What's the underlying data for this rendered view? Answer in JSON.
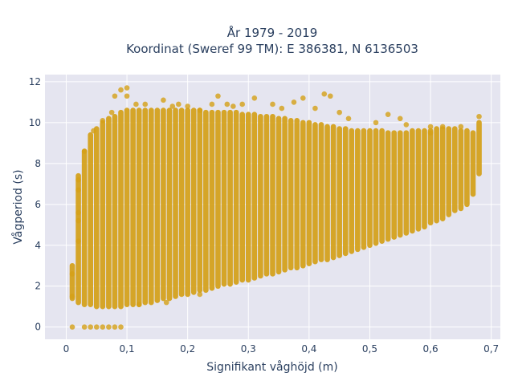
{
  "chart_data": {
    "type": "scatter",
    "title_lines": [
      "År 1979 - 2019",
      "Koordinat (Sweref 99 TM): E 386381, N 6136503"
    ],
    "xlabel": "Signifikant våghöjd (m)",
    "ylabel": "Vågperiod (s)",
    "xlim": [
      -0.035,
      0.715
    ],
    "ylim": [
      -0.6,
      12.35
    ],
    "x_ticks": [
      0,
      0.1,
      0.2,
      0.3,
      0.4,
      0.5,
      0.6,
      0.7
    ],
    "x_tick_labels": [
      "0",
      "0,1",
      "0,2",
      "0,3",
      "0,4",
      "0,5",
      "0,6",
      "0,7"
    ],
    "y_ticks": [
      0,
      2,
      4,
      6,
      8,
      10,
      12
    ],
    "y_tick_labels": [
      "0",
      "2",
      "4",
      "6",
      "8",
      "10",
      "12"
    ],
    "grid": true,
    "legend": "none",
    "marker_color": "#d4a017",
    "plot_background": "#e5e5f0",
    "bands": [
      [
        0.01,
        1.4,
        3.0
      ],
      [
        0.02,
        1.2,
        7.4
      ],
      [
        0.03,
        1.1,
        8.6
      ],
      [
        0.04,
        1.1,
        9.4
      ],
      [
        0.05,
        1.0,
        9.7
      ],
      [
        0.06,
        1.0,
        10.0
      ],
      [
        0.07,
        1.0,
        10.2
      ],
      [
        0.08,
        1.0,
        10.3
      ],
      [
        0.09,
        1.0,
        10.5
      ],
      [
        0.1,
        1.1,
        10.6
      ],
      [
        0.11,
        1.1,
        10.6
      ],
      [
        0.12,
        1.1,
        10.6
      ],
      [
        0.13,
        1.2,
        10.6
      ],
      [
        0.14,
        1.2,
        10.6
      ],
      [
        0.15,
        1.3,
        10.6
      ],
      [
        0.16,
        1.4,
        10.6
      ],
      [
        0.17,
        1.4,
        10.6
      ],
      [
        0.18,
        1.5,
        10.6
      ],
      [
        0.19,
        1.6,
        10.6
      ],
      [
        0.2,
        1.6,
        10.6
      ],
      [
        0.21,
        1.7,
        10.6
      ],
      [
        0.22,
        1.8,
        10.6
      ],
      [
        0.23,
        1.8,
        10.5
      ],
      [
        0.24,
        1.9,
        10.5
      ],
      [
        0.25,
        2.0,
        10.5
      ],
      [
        0.26,
        2.1,
        10.5
      ],
      [
        0.27,
        2.1,
        10.5
      ],
      [
        0.28,
        2.2,
        10.5
      ],
      [
        0.29,
        2.3,
        10.4
      ],
      [
        0.3,
        2.3,
        10.4
      ],
      [
        0.31,
        2.4,
        10.4
      ],
      [
        0.32,
        2.5,
        10.3
      ],
      [
        0.33,
        2.6,
        10.3
      ],
      [
        0.34,
        2.6,
        10.3
      ],
      [
        0.35,
        2.7,
        10.2
      ],
      [
        0.36,
        2.8,
        10.2
      ],
      [
        0.37,
        2.9,
        10.1
      ],
      [
        0.38,
        2.9,
        10.1
      ],
      [
        0.39,
        3.0,
        10.0
      ],
      [
        0.4,
        3.1,
        10.0
      ],
      [
        0.41,
        3.2,
        9.9
      ],
      [
        0.42,
        3.3,
        9.9
      ],
      [
        0.43,
        3.3,
        9.8
      ],
      [
        0.44,
        3.4,
        9.8
      ],
      [
        0.45,
        3.5,
        9.7
      ],
      [
        0.46,
        3.6,
        9.7
      ],
      [
        0.47,
        3.7,
        9.6
      ],
      [
        0.48,
        3.8,
        9.6
      ],
      [
        0.49,
        3.9,
        9.6
      ],
      [
        0.5,
        4.0,
        9.6
      ],
      [
        0.51,
        4.1,
        9.6
      ],
      [
        0.52,
        4.2,
        9.6
      ],
      [
        0.53,
        4.3,
        9.5
      ],
      [
        0.54,
        4.4,
        9.5
      ],
      [
        0.55,
        4.5,
        9.5
      ],
      [
        0.56,
        4.6,
        9.5
      ],
      [
        0.57,
        4.7,
        9.6
      ],
      [
        0.58,
        4.8,
        9.6
      ],
      [
        0.59,
        4.9,
        9.6
      ],
      [
        0.6,
        5.1,
        9.6
      ],
      [
        0.61,
        5.2,
        9.7
      ],
      [
        0.62,
        5.3,
        9.7
      ],
      [
        0.63,
        5.5,
        9.7
      ],
      [
        0.64,
        5.7,
        9.7
      ],
      [
        0.65,
        5.8,
        9.6
      ],
      [
        0.66,
        6.0,
        9.6
      ],
      [
        0.67,
        6.5,
        9.5
      ],
      [
        0.68,
        7.5,
        10.0
      ]
    ],
    "points": [
      [
        0.01,
        1.5
      ],
      [
        0.01,
        2.6
      ],
      [
        0.01,
        0.0
      ],
      [
        0.02,
        5.6
      ],
      [
        0.02,
        4.2
      ],
      [
        0.02,
        5.2
      ],
      [
        0.02,
        6.7
      ],
      [
        0.02,
        7.2
      ],
      [
        0.03,
        8.6
      ],
      [
        0.03,
        0.0
      ],
      [
        0.04,
        0.0
      ],
      [
        0.05,
        0.0
      ],
      [
        0.06,
        0.0
      ],
      [
        0.07,
        0.0
      ],
      [
        0.08,
        0.0
      ],
      [
        0.09,
        0.0
      ],
      [
        0.045,
        9.6
      ],
      [
        0.06,
        10.1
      ],
      [
        0.075,
        10.5
      ],
      [
        0.08,
        11.3
      ],
      [
        0.09,
        11.6
      ],
      [
        0.1,
        11.7
      ],
      [
        0.1,
        11.3
      ],
      [
        0.115,
        10.9
      ],
      [
        0.13,
        10.9
      ],
      [
        0.16,
        11.1
      ],
      [
        0.175,
        10.8
      ],
      [
        0.185,
        10.9
      ],
      [
        0.2,
        10.8
      ],
      [
        0.22,
        10.6
      ],
      [
        0.24,
        10.9
      ],
      [
        0.25,
        11.3
      ],
      [
        0.265,
        10.9
      ],
      [
        0.275,
        10.8
      ],
      [
        0.29,
        10.9
      ],
      [
        0.31,
        11.2
      ],
      [
        0.34,
        10.9
      ],
      [
        0.355,
        10.7
      ],
      [
        0.375,
        11.0
      ],
      [
        0.39,
        11.2
      ],
      [
        0.41,
        10.7
      ],
      [
        0.425,
        11.4
      ],
      [
        0.435,
        11.3
      ],
      [
        0.45,
        10.5
      ],
      [
        0.465,
        10.2
      ],
      [
        0.51,
        10.0
      ],
      [
        0.53,
        10.4
      ],
      [
        0.55,
        10.2
      ],
      [
        0.56,
        9.9
      ],
      [
        0.6,
        9.8
      ],
      [
        0.62,
        9.8
      ],
      [
        0.65,
        9.8
      ],
      [
        0.68,
        10.3
      ],
      [
        0.165,
        1.2
      ],
      [
        0.12,
        1.1
      ],
      [
        0.6,
        9.5
      ],
      [
        0.22,
        1.6
      ]
    ]
  }
}
